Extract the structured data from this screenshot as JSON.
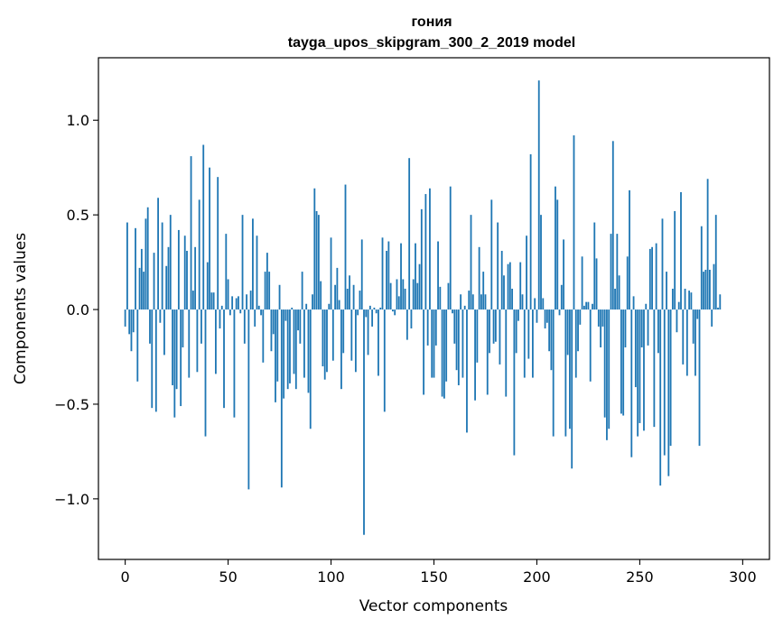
{
  "chart_data": {
    "type": "bar",
    "title": "гония",
    "subtitle": "tayga_upos_skipgram_300_2_2019 model",
    "xlabel": "Vector components",
    "ylabel": "Components values",
    "xlim": [
      -13,
      313
    ],
    "ylim": [
      -1.32,
      1.33
    ],
    "xticks": [
      0,
      50,
      100,
      150,
      200,
      250,
      300
    ],
    "xtick_labels": [
      "0",
      "50",
      "100",
      "150",
      "200",
      "250",
      "300"
    ],
    "yticks": [
      -1.0,
      -0.5,
      0.0,
      0.5,
      1.0
    ],
    "ytick_labels": [
      "−1.0",
      "−0.5",
      "0.0",
      "0.5",
      "1.0"
    ],
    "grid": false,
    "bar_color": "#1f77b4",
    "values": [
      -0.09,
      0.46,
      -0.13,
      -0.22,
      -0.12,
      0.43,
      -0.38,
      0.22,
      0.32,
      0.2,
      0.48,
      0.54,
      -0.18,
      -0.52,
      0.3,
      -0.54,
      0.59,
      -0.07,
      0.46,
      -0.24,
      0.23,
      0.33,
      0.5,
      -0.4,
      -0.57,
      -0.42,
      0.42,
      -0.51,
      -0.2,
      0.39,
      0.31,
      -0.36,
      0.81,
      0.1,
      0.33,
      -0.33,
      0.58,
      -0.18,
      0.87,
      -0.67,
      0.25,
      0.75,
      0.09,
      0.09,
      -0.34,
      0.7,
      -0.1,
      0.02,
      -0.52,
      0.4,
      0.16,
      -0.03,
      0.07,
      -0.57,
      0.06,
      0.07,
      -0.02,
      0.5,
      -0.18,
      0.08,
      -0.95,
      0.1,
      0.48,
      -0.09,
      0.39,
      0.02,
      -0.03,
      -0.28,
      0.2,
      0.3,
      0.2,
      -0.22,
      -0.13,
      -0.49,
      -0.38,
      0.13,
      -0.94,
      -0.47,
      -0.06,
      -0.42,
      -0.39,
      0.01,
      -0.34,
      -0.42,
      -0.11,
      -0.18,
      0.2,
      -0.36,
      0.03,
      -0.44,
      -0.63,
      0.08,
      0.64,
      0.52,
      0.5,
      0.15,
      -0.3,
      -0.37,
      -0.33,
      0.03,
      0.38,
      -0.27,
      0.13,
      0.22,
      0.05,
      -0.42,
      -0.23,
      0.66,
      0.11,
      0.18,
      -0.27,
      0.13,
      -0.33,
      -0.03,
      0.1,
      0.37,
      -1.19,
      -0.04,
      -0.24,
      0.02,
      -0.09,
      0.01,
      -0.02,
      -0.35,
      0.01,
      0.38,
      -0.54,
      0.31,
      0.36,
      0.14,
      -0.01,
      -0.03,
      0.16,
      0.07,
      0.35,
      0.16,
      0.11,
      -0.16,
      0.8,
      -0.1,
      0.16,
      0.35,
      0.14,
      0.24,
      0.53,
      -0.45,
      0.61,
      -0.19,
      0.64,
      -0.36,
      -0.36,
      -0.19,
      0.36,
      0.12,
      -0.46,
      -0.47,
      -0.38,
      0.14,
      0.65,
      -0.02,
      -0.18,
      -0.32,
      -0.4,
      0.08,
      -0.36,
      0.02,
      -0.65,
      0.1,
      0.5,
      0.08,
      -0.48,
      -0.28,
      0.33,
      0.08,
      0.2,
      0.08,
      -0.45,
      -0.23,
      0.58,
      -0.18,
      -0.17,
      0.46,
      -0.29,
      0.31,
      0.18,
      -0.46,
      0.24,
      0.25,
      0.11,
      -0.77,
      -0.23,
      -0.06,
      0.25,
      0.08,
      -0.36,
      0.39,
      -0.26,
      0.82,
      -0.36,
      0.06,
      -0.07,
      1.21,
      0.5,
      0.06,
      -0.1,
      -0.07,
      -0.22,
      -0.32,
      -0.67,
      0.65,
      0.58,
      -0.03,
      0.13,
      0.37,
      -0.67,
      -0.24,
      -0.63,
      -0.84,
      0.92,
      -0.36,
      -0.22,
      -0.08,
      0.28,
      0.02,
      0.04,
      0.04,
      -0.38,
      0.03,
      0.46,
      0.27,
      -0.09,
      -0.2,
      -0.09,
      -0.57,
      -0.69,
      -0.63,
      0.4,
      0.89,
      0.11,
      0.4,
      0.18,
      -0.55,
      -0.56,
      -0.2,
      0.28,
      0.63,
      -0.78,
      0.07,
      -0.41,
      -0.67,
      -0.6,
      -0.2,
      -0.64,
      0.03,
      -0.19,
      0.32,
      0.33,
      -0.62,
      0.35,
      -0.23,
      -0.93,
      0.48,
      -0.77,
      0.2,
      -0.88,
      -0.72,
      0.11,
      0.52,
      -0.12,
      0.04,
      0.62,
      -0.29,
      0.11,
      -0.35,
      0.1,
      0.09,
      -0.18,
      -0.35,
      -0.05,
      -0.72,
      0.44,
      0.2,
      0.21,
      0.69,
      0.21,
      -0.09,
      0.24,
      0.5,
      0.01,
      0.08
    ]
  }
}
